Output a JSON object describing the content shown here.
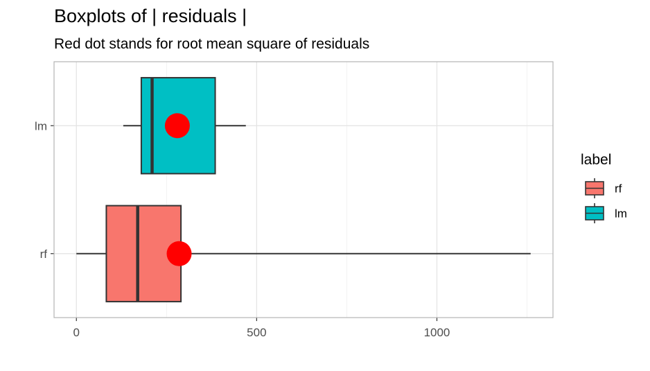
{
  "chart_data": {
    "type": "boxplot",
    "title": "Boxplots of | residuals |",
    "subtitle": "Red dot stands for root mean square of residuals",
    "xlabel": "",
    "ylabel": "",
    "xlim": [
      -62,
      1322
    ],
    "x_ticks": [
      0,
      500,
      1000
    ],
    "x_tick_labels": [
      "0",
      "500",
      "1000"
    ],
    "grid": true,
    "categories": [
      "rf",
      "lm"
    ],
    "boxes": [
      {
        "label": "rf",
        "whisker_low": 0,
        "q1": 83,
        "median": 170,
        "q3": 290,
        "whisker_high": 1260,
        "rms": 285,
        "color": "#F8766D"
      },
      {
        "label": "lm",
        "whisker_low": 130,
        "q1": 180,
        "median": 210,
        "q3": 385,
        "whisker_high": 470,
        "rms": 280,
        "color": "#00BFC4"
      }
    ],
    "rms_color": "#FF0000",
    "legend": {
      "title": "label",
      "position": "right",
      "items": [
        {
          "label": "rf",
          "color": "#F8766D"
        },
        {
          "label": "lm",
          "color": "#00BFC4"
        }
      ]
    }
  }
}
